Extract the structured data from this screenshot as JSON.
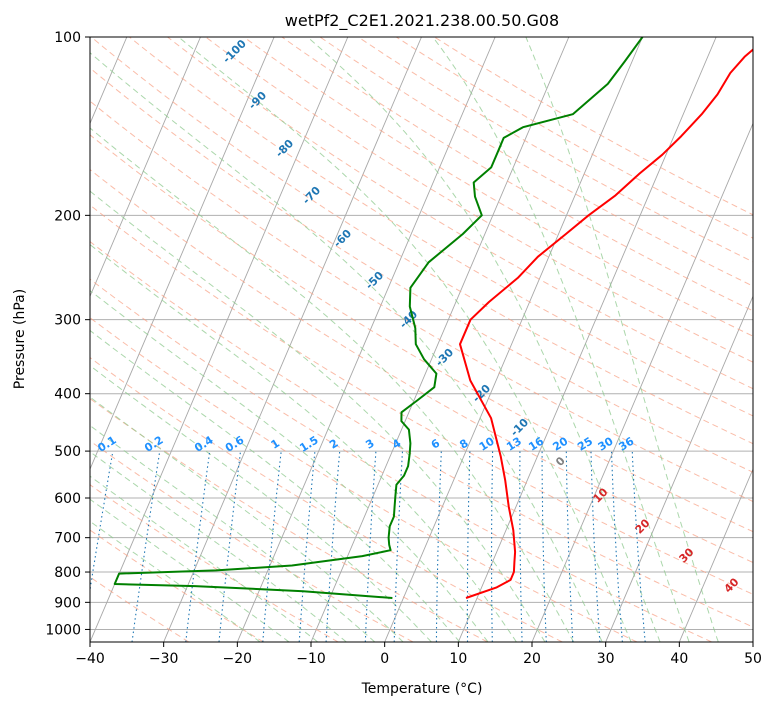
{
  "chart_data": {
    "type": "line",
    "title": "wetPf2_C2E1.2021.238.00.50.G08",
    "xlabel": "Temperature (°C)",
    "ylabel": "Pressure (hPa)",
    "xlim": [
      -40,
      50
    ],
    "ylim": [
      1050,
      100
    ],
    "y_scale": "log",
    "grid": true,
    "x_ticks": [
      "−40",
      "−30",
      "−20",
      "−10",
      "0",
      "10",
      "20",
      "30",
      "40",
      "50"
    ],
    "y_ticks": [
      "100",
      "200",
      "300",
      "400",
      "500",
      "600",
      "700",
      "800",
      "900",
      "1000"
    ],
    "series": [
      {
        "color": "#ff0000",
        "points": [
          [
            8.5,
            885
          ],
          [
            12,
            850
          ],
          [
            13.5,
            825
          ],
          [
            13.5,
            800
          ],
          [
            13,
            770
          ],
          [
            12.5,
            740
          ],
          [
            11,
            680
          ],
          [
            9,
            620
          ],
          [
            7,
            560
          ],
          [
            5,
            510
          ],
          [
            1.5,
            440
          ],
          [
            -3.5,
            380
          ],
          [
            -7,
            330
          ],
          [
            -7,
            300
          ],
          [
            -5.5,
            280
          ],
          [
            -3,
            255
          ],
          [
            -1.5,
            235
          ],
          [
            1,
            215
          ],
          [
            3,
            200
          ],
          [
            5.5,
            185
          ],
          [
            7.5,
            170
          ],
          [
            9.5,
            158
          ],
          [
            11,
            147
          ],
          [
            12.5,
            135
          ],
          [
            13.5,
            125
          ],
          [
            14,
            115
          ],
          [
            15,
            108
          ],
          [
            17,
            100
          ]
        ]
      },
      {
        "color": "#008000",
        "points": [
          [
            -1.5,
            885
          ],
          [
            -14,
            862
          ],
          [
            -29,
            845
          ],
          [
            -40,
            838
          ],
          [
            -40,
            805
          ],
          [
            -27,
            795
          ],
          [
            -17,
            780
          ],
          [
            -8,
            752
          ],
          [
            -4.5,
            735
          ],
          [
            -5,
            720
          ],
          [
            -5.5,
            700
          ],
          [
            -6,
            670
          ],
          [
            -6,
            645
          ],
          [
            -6.5,
            620
          ],
          [
            -7,
            595
          ],
          [
            -7.5,
            570
          ],
          [
            -7,
            550
          ],
          [
            -7,
            530
          ],
          [
            -7.5,
            505
          ],
          [
            -8,
            485
          ],
          [
            -9,
            460
          ],
          [
            -10.5,
            445
          ],
          [
            -11,
            430
          ],
          [
            -9.5,
            410
          ],
          [
            -8,
            390
          ],
          [
            -8.5,
            370
          ],
          [
            -11,
            350
          ],
          [
            -13,
            330
          ],
          [
            -14,
            310
          ],
          [
            -16,
            285
          ],
          [
            -17,
            265
          ],
          [
            -16,
            240
          ],
          [
            -13,
            215
          ],
          [
            -11.5,
            200
          ],
          [
            -13.5,
            186
          ],
          [
            -14.5,
            176
          ],
          [
            -13,
            166
          ],
          [
            -13,
            155
          ],
          [
            -13,
            148
          ],
          [
            -11,
            142
          ],
          [
            -5,
            135
          ],
          [
            -2,
            120
          ],
          [
            -1,
            110
          ],
          [
            0,
            100
          ]
        ]
      }
    ],
    "dry_adiabat_labels": [
      "-100",
      "-90",
      "-80",
      "-70",
      "-60",
      "-50",
      "-40",
      "-30",
      "-20",
      "-10",
      "0",
      "10",
      "20",
      "30",
      "40"
    ],
    "mixing_ratio_labels": [
      "0.1",
      "0.2",
      "0.4",
      "0.6",
      "1",
      "1.5",
      "2",
      "3",
      "4",
      "6",
      "8",
      "10",
      "13",
      "16",
      "20",
      "25",
      "30",
      "36"
    ],
    "colors": {
      "temperature": "#ff0000",
      "dewpoint": "#008000",
      "dry_adiabat": "#f8a083",
      "moist_adiabat": "#8fc98f",
      "mixing_ratio": "#1f77b4",
      "isotherm": "#808080",
      "wet_label": "#1f77b4",
      "dry_label": "#d62728",
      "mixing_label": "#1e90ff"
    }
  }
}
